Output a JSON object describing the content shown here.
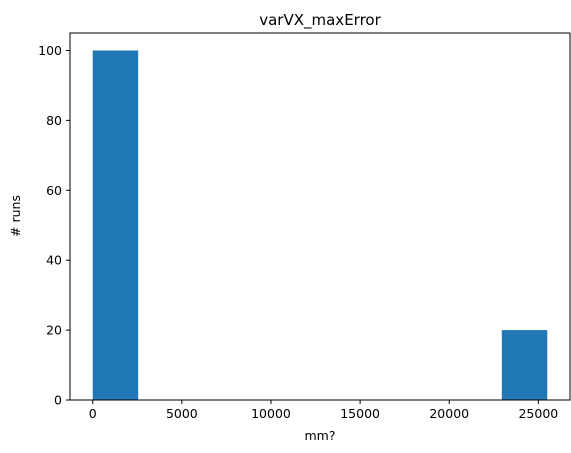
{
  "chart_data": {
    "type": "bar",
    "title": "varVX_maxError",
    "xlabel": "mm?",
    "ylabel": "# runs",
    "xlim": [
      -1275,
      26775
    ],
    "ylim": [
      0,
      105
    ],
    "x_ticks": [
      0,
      5000,
      10000,
      15000,
      20000,
      25000
    ],
    "y_ticks": [
      0,
      20,
      40,
      60,
      80,
      100
    ],
    "grid": false,
    "bar_color": "#1f77b4",
    "bins": [
      {
        "x0": 0,
        "x1": 2550,
        "count": 100
      },
      {
        "x0": 2550,
        "x1": 5100,
        "count": 0
      },
      {
        "x0": 5100,
        "x1": 7650,
        "count": 0
      },
      {
        "x0": 7650,
        "x1": 10200,
        "count": 0
      },
      {
        "x0": 10200,
        "x1": 12750,
        "count": 0
      },
      {
        "x0": 12750,
        "x1": 15300,
        "count": 0
      },
      {
        "x0": 15300,
        "x1": 17850,
        "count": 0
      },
      {
        "x0": 17850,
        "x1": 20400,
        "count": 0
      },
      {
        "x0": 20400,
        "x1": 22950,
        "count": 0
      },
      {
        "x0": 22950,
        "x1": 25500,
        "count": 20
      }
    ]
  }
}
